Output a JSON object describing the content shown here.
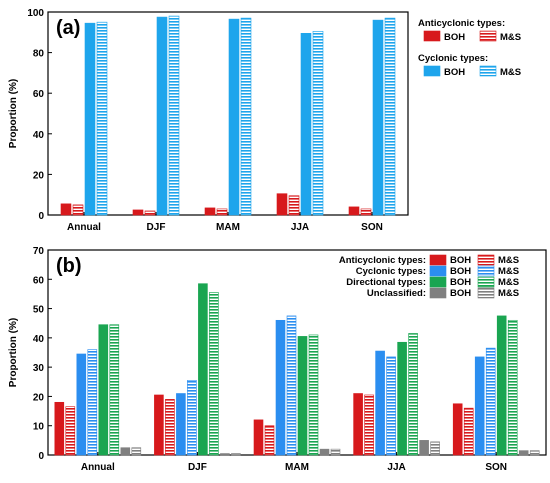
{
  "chart_data": [
    {
      "type": "bar",
      "panel_label": "(a)",
      "ylabel": "Proportion (%)",
      "ylim": [
        0,
        100
      ],
      "yticks": [
        0,
        20,
        40,
        60,
        80,
        100
      ],
      "categories": [
        "Annual",
        "DJF",
        "MAM",
        "JJA",
        "SON"
      ],
      "legend": {
        "placement": "right-outside",
        "groups": [
          {
            "title": "Anticyclonic types:",
            "solid": "BOH",
            "hatched": "M&S"
          },
          {
            "title": "Cyclonic types:",
            "solid": "BOH",
            "hatched": "M&S"
          }
        ]
      },
      "series": [
        {
          "group": "Anticyclonic types",
          "name": "BOH",
          "style": "solid",
          "color": "#d7191c",
          "values": [
            5.5,
            2.5,
            3.5,
            10.5,
            4.0
          ]
        },
        {
          "group": "Anticyclonic types",
          "name": "M&S",
          "style": "hatched",
          "color": "#d7191c",
          "values": [
            5.0,
            2.0,
            3.0,
            9.5,
            3.0
          ]
        },
        {
          "group": "Cyclonic types",
          "name": "BOH",
          "style": "solid",
          "color": "#1ea5ec",
          "values": [
            94.5,
            97.5,
            96.5,
            89.5,
            96.0
          ]
        },
        {
          "group": "Cyclonic types",
          "name": "M&S",
          "style": "hatched",
          "color": "#1ea5ec",
          "values": [
            95.0,
            98.0,
            97.0,
            90.5,
            97.0
          ]
        }
      ]
    },
    {
      "type": "bar",
      "panel_label": "(b)",
      "ylabel": "Proportion (%)",
      "ylim": [
        0,
        70
      ],
      "yticks": [
        0,
        10,
        20,
        30,
        40,
        50,
        60,
        70
      ],
      "categories": [
        "Annual",
        "DJF",
        "MAM",
        "JJA",
        "SON"
      ],
      "legend": {
        "placement": "top-right",
        "groups": [
          {
            "title": "Anticyclonic types:",
            "solid": "BOH",
            "hatched": "M&S"
          },
          {
            "title": "Cyclonic types:",
            "solid": "BOH",
            "hatched": "M&S"
          },
          {
            "title": "Directional types:",
            "solid": "BOH",
            "hatched": "M&S"
          },
          {
            "title": "Unclassified:",
            "solid": "BOH",
            "hatched": "M&S"
          }
        ]
      },
      "series": [
        {
          "group": "Anticyclonic types",
          "name": "BOH",
          "style": "solid",
          "color": "#d7191c",
          "values": [
            18.0,
            20.5,
            12.0,
            21.0,
            17.5
          ]
        },
        {
          "group": "Anticyclonic types",
          "name": "M&S",
          "style": "hatched",
          "color": "#d7191c",
          "values": [
            16.5,
            19.0,
            10.0,
            20.5,
            16.0
          ]
        },
        {
          "group": "Cyclonic types",
          "name": "BOH",
          "style": "solid",
          "color": "#2b8ef0",
          "values": [
            34.5,
            21.0,
            46.0,
            35.5,
            33.5
          ]
        },
        {
          "group": "Cyclonic types",
          "name": "M&S",
          "style": "hatched",
          "color": "#2b8ef0",
          "values": [
            36.0,
            25.5,
            47.5,
            33.5,
            36.5
          ]
        },
        {
          "group": "Directional types",
          "name": "BOH",
          "style": "solid",
          "color": "#1aa551",
          "values": [
            44.5,
            58.5,
            40.5,
            38.5,
            47.5
          ]
        },
        {
          "group": "Directional types",
          "name": "M&S",
          "style": "hatched",
          "color": "#1aa551",
          "values": [
            44.5,
            55.5,
            41.0,
            41.5,
            46.0
          ]
        },
        {
          "group": "Unclassified",
          "name": "BOH",
          "style": "solid",
          "color": "#808080",
          "values": [
            2.5,
            0.5,
            2.0,
            5.0,
            1.5
          ]
        },
        {
          "group": "Unclassified",
          "name": "M&S",
          "style": "hatched",
          "color": "#808080",
          "values": [
            2.5,
            0.5,
            2.0,
            4.5,
            1.5
          ]
        }
      ]
    }
  ]
}
